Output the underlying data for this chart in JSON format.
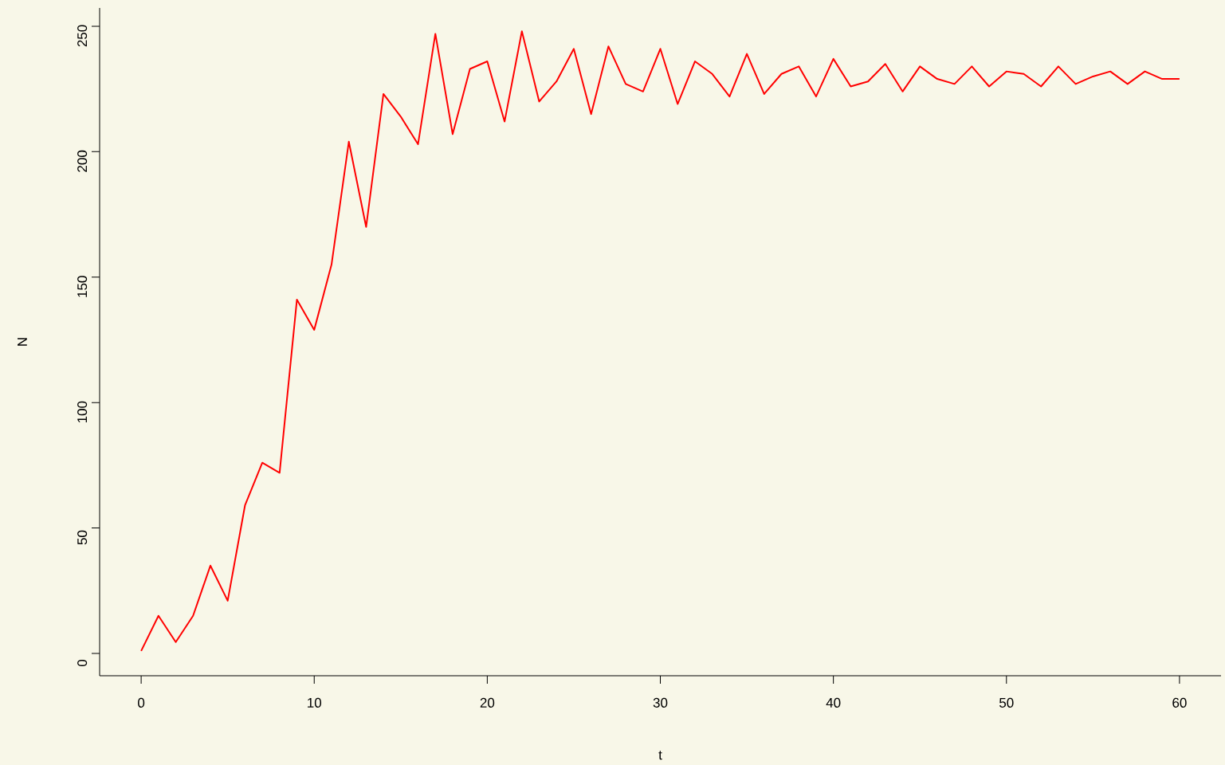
{
  "chart_data": {
    "type": "line",
    "xlabel": "t",
    "ylabel": "N",
    "x": [
      0,
      1,
      2,
      3,
      4,
      5,
      6,
      7,
      8,
      9,
      10,
      11,
      12,
      13,
      14,
      15,
      16,
      17,
      18,
      19,
      20,
      21,
      22,
      23,
      24,
      25,
      26,
      27,
      28,
      29,
      30,
      31,
      32,
      33,
      34,
      35,
      36,
      37,
      38,
      39,
      40,
      41,
      42,
      43,
      44,
      45,
      46,
      47,
      48,
      49,
      50,
      51,
      52,
      53,
      54,
      55,
      56,
      57,
      58,
      59,
      60
    ],
    "series": [
      {
        "color": "#ff0000",
        "values": [
          1,
          15,
          4.5,
          15,
          35,
          21,
          59,
          76,
          72,
          141,
          129,
          155,
          204,
          170,
          223,
          214,
          203,
          247,
          207,
          233,
          236,
          212,
          248,
          220,
          228,
          241,
          215,
          242,
          227,
          224,
          241,
          219,
          236,
          231,
          222,
          239,
          223,
          231,
          234,
          222,
          237,
          226,
          228,
          235,
          224,
          234,
          229,
          227,
          234,
          226,
          232,
          231,
          226,
          234,
          227,
          230,
          232,
          227,
          232,
          229,
          229
        ]
      }
    ],
    "xlim": [
      -2.4,
      62.4
    ],
    "ylim": [
      -8.9,
      257.3
    ],
    "xticks": [
      0,
      10,
      20,
      30,
      40,
      50,
      60
    ],
    "yticks": [
      0,
      50,
      100,
      150,
      200,
      250
    ],
    "line_style": "solid"
  }
}
